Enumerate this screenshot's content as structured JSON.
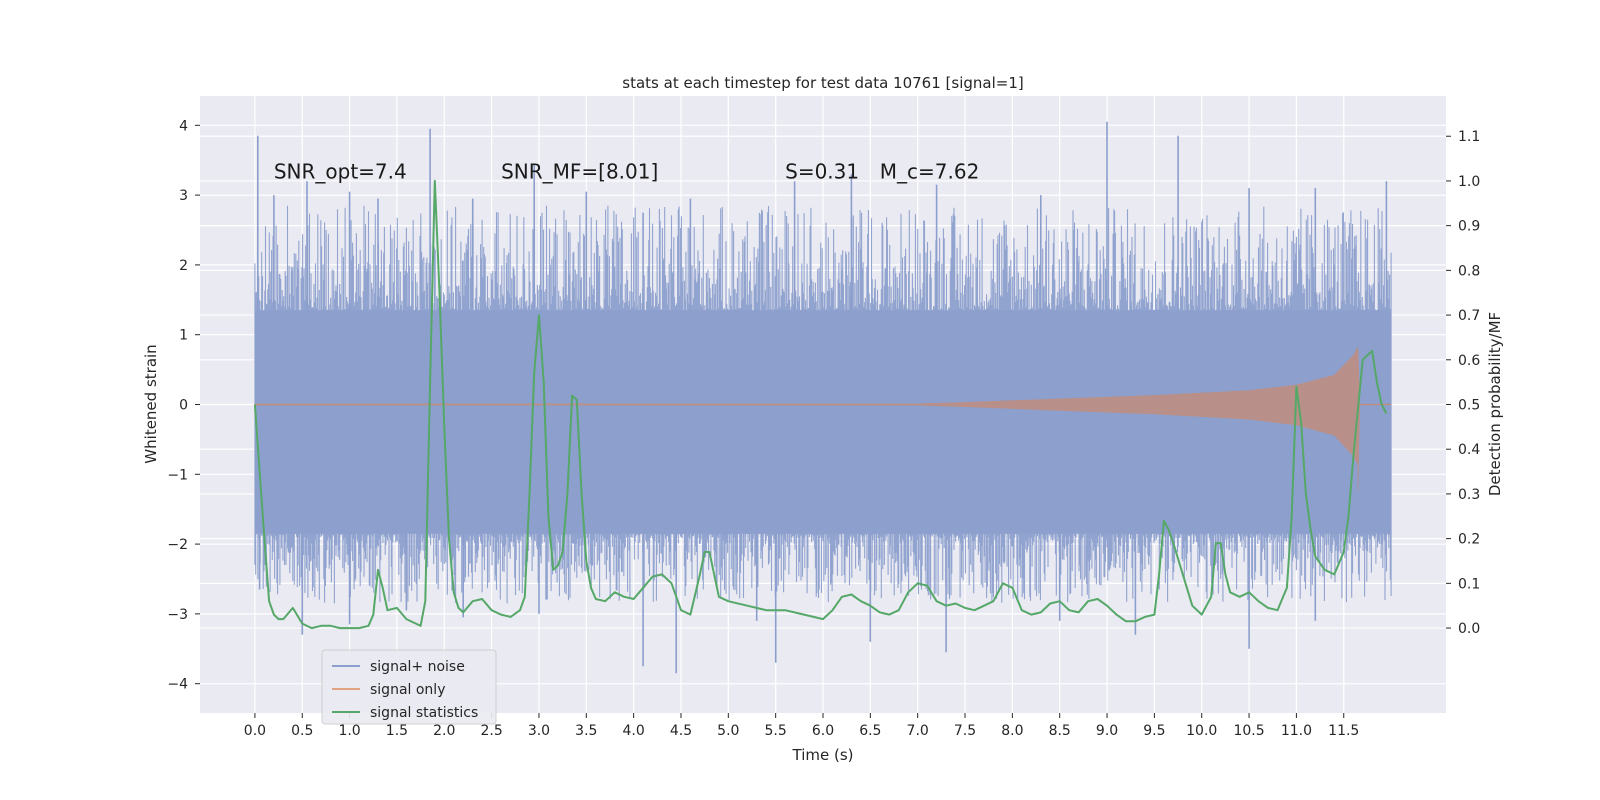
{
  "chart_data": {
    "type": "line",
    "title": "stats at each timestep for test data 10761 [signal=1]",
    "xlabel": "Time (s)",
    "ylabel": "Whitened strain",
    "y2label": "Detection probability/MF",
    "xlim": [
      -0.58,
      12.58
    ],
    "ylim": [
      -4.42,
      4.42
    ],
    "y2lim": [
      -0.19,
      1.19
    ],
    "x_ticks": [
      0.0,
      0.5,
      1.0,
      1.5,
      2.0,
      2.5,
      3.0,
      3.5,
      4.0,
      4.5,
      5.0,
      5.5,
      6.0,
      6.5,
      7.0,
      7.5,
      8.0,
      8.5,
      9.0,
      9.5,
      10.0,
      10.5,
      11.0,
      11.5
    ],
    "x_tick_labels": [
      "0.0",
      "0.5",
      "1.0",
      "1.5",
      "2.0",
      "2.5",
      "3.0",
      "3.5",
      "4.0",
      "4.5",
      "5.0",
      "5.5",
      "6.0",
      "6.5",
      "7.0",
      "7.5",
      "8.0",
      "8.5",
      "9.0",
      "9.5",
      "10.0",
      "10.5",
      "11.0",
      "11.5"
    ],
    "y_ticks": [
      4,
      3,
      2,
      1,
      0,
      -1,
      -2,
      -3,
      -4
    ],
    "y_tick_labels": [
      "4",
      "3",
      "2",
      "1",
      "0",
      "−1",
      "−2",
      "−3",
      "−4"
    ],
    "y2_ticks": [
      1.1,
      1.0,
      0.9,
      0.8,
      0.7,
      0.6,
      0.5,
      0.4,
      0.3,
      0.2,
      0.1,
      0.0
    ],
    "y2_tick_labels": [
      "1.1",
      "1.0",
      "0.9",
      "0.8",
      "0.7",
      "0.6",
      "0.5",
      "0.4",
      "0.3",
      "0.2",
      "0.1",
      "0.0"
    ],
    "grid": true,
    "legend_position": "lower-left",
    "annotations": [
      {
        "text": "SNR_opt=7.4",
        "x": 0.2,
        "y": 3.35
      },
      {
        "text": "SNR_MF=[8.01]",
        "x": 2.6,
        "y": 3.35
      },
      {
        "text": "S=0.31",
        "x": 5.6,
        "y": 3.35
      },
      {
        "text": "M_c=7.62",
        "x": 6.6,
        "y": 3.35
      }
    ],
    "series": [
      {
        "name": "signal+ noise",
        "color": "#8c9fcc",
        "axis": "left",
        "t_start": 0.0,
        "t_end": 12.0,
        "envelope_upper": 1.35,
        "envelope_lower": -1.85,
        "peaks": [
          {
            "x": 0.03,
            "y": 3.85
          },
          {
            "x": 0.2,
            "y": 3.0
          },
          {
            "x": 0.55,
            "y": 3.2
          },
          {
            "x": 1.0,
            "y": 3.05
          },
          {
            "x": 1.3,
            "y": 2.95
          },
          {
            "x": 1.85,
            "y": 3.95
          },
          {
            "x": 2.3,
            "y": 2.95
          },
          {
            "x": 2.95,
            "y": 3.45
          },
          {
            "x": 3.5,
            "y": 3.05
          },
          {
            "x": 4.1,
            "y": 2.75
          },
          {
            "x": 4.6,
            "y": 2.95
          },
          {
            "x": 5.7,
            "y": 3.2
          },
          {
            "x": 6.3,
            "y": 3.3
          },
          {
            "x": 7.2,
            "y": 3.15
          },
          {
            "x": 8.3,
            "y": 3.0
          },
          {
            "x": 9.0,
            "y": 4.05
          },
          {
            "x": 9.75,
            "y": 3.85
          },
          {
            "x": 10.5,
            "y": 3.1
          },
          {
            "x": 11.2,
            "y": 3.1
          },
          {
            "x": 11.95,
            "y": 3.2
          }
        ],
        "troughs": [
          {
            "x": 0.05,
            "y": -2.65
          },
          {
            "x": 0.5,
            "y": -3.3
          },
          {
            "x": 1.0,
            "y": -3.15
          },
          {
            "x": 1.6,
            "y": -2.95
          },
          {
            "x": 2.2,
            "y": -3.05
          },
          {
            "x": 3.0,
            "y": -3.0
          },
          {
            "x": 4.1,
            "y": -3.75
          },
          {
            "x": 4.45,
            "y": -3.85
          },
          {
            "x": 5.3,
            "y": -3.1
          },
          {
            "x": 5.5,
            "y": -3.7
          },
          {
            "x": 6.5,
            "y": -3.4
          },
          {
            "x": 7.3,
            "y": -3.55
          },
          {
            "x": 8.5,
            "y": -3.1
          },
          {
            "x": 9.3,
            "y": -3.3
          },
          {
            "x": 10.5,
            "y": -3.5
          },
          {
            "x": 11.2,
            "y": -3.1
          }
        ]
      },
      {
        "name": "signal only",
        "color": "#dd8452",
        "axis": "left",
        "chirp_start": 7.0,
        "merger_x": 11.65,
        "end_x": 12.0,
        "amplitude_points": [
          {
            "x": 0.0,
            "y": 0.01
          },
          {
            "x": 7.0,
            "y": 0.01
          },
          {
            "x": 7.5,
            "y": 0.03
          },
          {
            "x": 8.5,
            "y": 0.08
          },
          {
            "x": 9.5,
            "y": 0.13
          },
          {
            "x": 10.5,
            "y": 0.2
          },
          {
            "x": 11.0,
            "y": 0.28
          },
          {
            "x": 11.4,
            "y": 0.42
          },
          {
            "x": 11.6,
            "y": 0.7
          },
          {
            "x": 11.65,
            "y": 0.82
          }
        ],
        "merger_trough": -1.25
      },
      {
        "name": "signal statistics",
        "color": "#55a868",
        "axis": "right",
        "x": [
          0.0,
          0.05,
          0.1,
          0.15,
          0.2,
          0.25,
          0.3,
          0.4,
          0.5,
          0.6,
          0.7,
          0.8,
          0.9,
          1.0,
          1.1,
          1.2,
          1.25,
          1.3,
          1.35,
          1.4,
          1.5,
          1.6,
          1.7,
          1.75,
          1.8,
          1.85,
          1.9,
          1.95,
          2.0,
          2.05,
          2.1,
          2.15,
          2.2,
          2.3,
          2.4,
          2.5,
          2.6,
          2.7,
          2.8,
          2.85,
          2.9,
          2.95,
          3.0,
          3.05,
          3.1,
          3.15,
          3.2,
          3.25,
          3.3,
          3.35,
          3.4,
          3.45,
          3.5,
          3.55,
          3.6,
          3.7,
          3.8,
          3.9,
          4.0,
          4.1,
          4.2,
          4.3,
          4.4,
          4.5,
          4.6,
          4.7,
          4.75,
          4.8,
          4.9,
          5.0,
          5.2,
          5.4,
          5.6,
          5.8,
          6.0,
          6.1,
          6.2,
          6.3,
          6.4,
          6.5,
          6.6,
          6.7,
          6.8,
          6.9,
          7.0,
          7.1,
          7.2,
          7.3,
          7.4,
          7.5,
          7.6,
          7.7,
          7.8,
          7.9,
          8.0,
          8.1,
          8.2,
          8.3,
          8.4,
          8.5,
          8.6,
          8.7,
          8.8,
          8.9,
          9.0,
          9.1,
          9.2,
          9.3,
          9.4,
          9.5,
          9.55,
          9.6,
          9.65,
          9.7,
          9.8,
          9.9,
          10.0,
          10.1,
          10.15,
          10.2,
          10.25,
          10.3,
          10.4,
          10.5,
          10.6,
          10.7,
          10.8,
          10.9,
          10.95,
          11.0,
          11.05,
          11.1,
          11.15,
          11.2,
          11.3,
          11.4,
          11.5,
          11.55,
          11.6,
          11.7,
          11.8,
          11.85,
          11.9,
          11.95
        ],
        "values": [
          0.5,
          0.35,
          0.2,
          0.06,
          0.03,
          0.02,
          0.02,
          0.045,
          0.01,
          0.0,
          0.005,
          0.005,
          0.0,
          0.0,
          0.0,
          0.005,
          0.03,
          0.13,
          0.09,
          0.04,
          0.045,
          0.02,
          0.01,
          0.005,
          0.06,
          0.55,
          1.0,
          0.75,
          0.45,
          0.2,
          0.08,
          0.045,
          0.035,
          0.06,
          0.065,
          0.04,
          0.03,
          0.025,
          0.04,
          0.07,
          0.3,
          0.57,
          0.7,
          0.55,
          0.25,
          0.13,
          0.14,
          0.17,
          0.3,
          0.52,
          0.51,
          0.3,
          0.15,
          0.09,
          0.065,
          0.06,
          0.08,
          0.07,
          0.065,
          0.09,
          0.115,
          0.12,
          0.1,
          0.04,
          0.03,
          0.12,
          0.17,
          0.17,
          0.07,
          0.06,
          0.05,
          0.04,
          0.04,
          0.03,
          0.02,
          0.04,
          0.07,
          0.075,
          0.06,
          0.05,
          0.035,
          0.03,
          0.04,
          0.08,
          0.1,
          0.095,
          0.06,
          0.05,
          0.055,
          0.045,
          0.04,
          0.05,
          0.06,
          0.1,
          0.09,
          0.04,
          0.03,
          0.035,
          0.055,
          0.06,
          0.04,
          0.035,
          0.06,
          0.065,
          0.05,
          0.03,
          0.015,
          0.015,
          0.025,
          0.03,
          0.12,
          0.24,
          0.22,
          0.19,
          0.12,
          0.05,
          0.03,
          0.07,
          0.19,
          0.19,
          0.12,
          0.08,
          0.07,
          0.08,
          0.06,
          0.045,
          0.04,
          0.09,
          0.25,
          0.54,
          0.46,
          0.3,
          0.22,
          0.16,
          0.13,
          0.12,
          0.17,
          0.25,
          0.38,
          0.6,
          0.62,
          0.55,
          0.5,
          0.48
        ]
      }
    ]
  }
}
